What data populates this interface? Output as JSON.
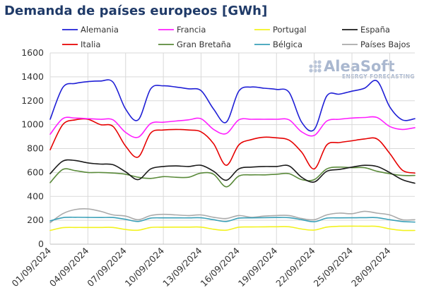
{
  "page": {
    "background": "#ffffff"
  },
  "chart_data": {
    "type": "line",
    "title": "Demanda de países europeos [GWh]",
    "xlabel": "",
    "ylabel": "",
    "ylim": [
      0,
      1600
    ],
    "y_ticks": [
      0,
      200,
      400,
      600,
      800,
      1000,
      1200,
      1400,
      1600
    ],
    "x_range": [
      "2024-09-01",
      "2024-09-30"
    ],
    "x_tick_labels": [
      "01/09/2024",
      "04/09/2024",
      "07/09/2024",
      "10/09/2024",
      "13/09/2024",
      "16/09/2024",
      "19/09/2024",
      "22/09/2024",
      "25/09/2024",
      "28/09/2024"
    ],
    "grid": true,
    "legend_position": "top",
    "logo": {
      "name": "AleaSoft",
      "tagline": "ENERGY FORECASTING",
      "icon": "aleasoft-dots-icon"
    },
    "x": [
      "2024-09-01",
      "2024-09-02",
      "2024-09-03",
      "2024-09-04",
      "2024-09-05",
      "2024-09-06",
      "2024-09-07",
      "2024-09-08",
      "2024-09-09",
      "2024-09-10",
      "2024-09-11",
      "2024-09-12",
      "2024-09-13",
      "2024-09-14",
      "2024-09-15",
      "2024-09-16",
      "2024-09-17",
      "2024-09-18",
      "2024-09-19",
      "2024-09-20",
      "2024-09-21",
      "2024-09-22",
      "2024-09-23",
      "2024-09-24",
      "2024-09-25",
      "2024-09-26",
      "2024-09-27",
      "2024-09-28",
      "2024-09-29",
      "2024-09-30"
    ],
    "series": [
      {
        "name": "Alemania",
        "color": "#1f1fd6",
        "values": [
          1045,
          1310,
          1345,
          1360,
          1365,
          1355,
          1130,
          1040,
          1300,
          1325,
          1315,
          1300,
          1285,
          1130,
          1020,
          1280,
          1315,
          1305,
          1295,
          1270,
          1020,
          960,
          1240,
          1255,
          1280,
          1305,
          1365,
          1150,
          1040,
          1050
        ]
      },
      {
        "name": "Francia",
        "color": "#ff1fff",
        "values": [
          920,
          1050,
          1055,
          1050,
          1045,
          1040,
          935,
          895,
          1010,
          1020,
          1030,
          1040,
          1050,
          960,
          925,
          1040,
          1045,
          1045,
          1045,
          1040,
          940,
          910,
          1030,
          1045,
          1055,
          1060,
          1060,
          985,
          960,
          975
        ]
      },
      {
        "name": "Portugal",
        "color": "#f2f21f",
        "values": [
          115,
          138,
          140,
          140,
          140,
          140,
          123,
          117,
          140,
          142,
          143,
          143,
          143,
          125,
          117,
          142,
          144,
          145,
          146,
          146,
          127,
          118,
          143,
          150,
          151,
          150,
          149,
          128,
          116,
          115
        ]
      },
      {
        "name": "España",
        "color": "#1a1a1a",
        "values": [
          590,
          695,
          700,
          680,
          670,
          665,
          605,
          540,
          630,
          650,
          655,
          650,
          660,
          610,
          535,
          630,
          645,
          650,
          650,
          655,
          560,
          520,
          610,
          625,
          645,
          660,
          650,
          600,
          540,
          510
        ]
      },
      {
        "name": "Italia",
        "color": "#e60000",
        "values": [
          790,
          1000,
          1040,
          1045,
          1000,
          985,
          820,
          730,
          930,
          955,
          960,
          955,
          940,
          840,
          660,
          830,
          875,
          895,
          890,
          870,
          770,
          630,
          830,
          850,
          865,
          880,
          880,
          760,
          620,
          595
        ]
      },
      {
        "name": "Gran Bretaña",
        "color": "#5a8a3a",
        "values": [
          515,
          625,
          615,
          600,
          600,
          595,
          585,
          560,
          550,
          565,
          560,
          560,
          595,
          585,
          480,
          570,
          580,
          580,
          585,
          590,
          540,
          540,
          630,
          645,
          640,
          640,
          610,
          590,
          575,
          575
        ]
      },
      {
        "name": "Bélgica",
        "color": "#3aa0b8",
        "values": [
          195,
          222,
          225,
          224,
          223,
          223,
          208,
          190,
          218,
          220,
          220,
          220,
          221,
          205,
          190,
          218,
          220,
          222,
          223,
          222,
          205,
          188,
          218,
          220,
          221,
          222,
          222,
          205,
          190,
          185
        ]
      },
      {
        "name": "Países Bajos",
        "color": "#aaaaaa",
        "values": [
          180,
          255,
          290,
          295,
          275,
          245,
          235,
          205,
          240,
          250,
          245,
          240,
          245,
          225,
          215,
          240,
          225,
          235,
          240,
          240,
          215,
          205,
          245,
          260,
          255,
          275,
          260,
          245,
          205,
          205
        ]
      }
    ]
  }
}
